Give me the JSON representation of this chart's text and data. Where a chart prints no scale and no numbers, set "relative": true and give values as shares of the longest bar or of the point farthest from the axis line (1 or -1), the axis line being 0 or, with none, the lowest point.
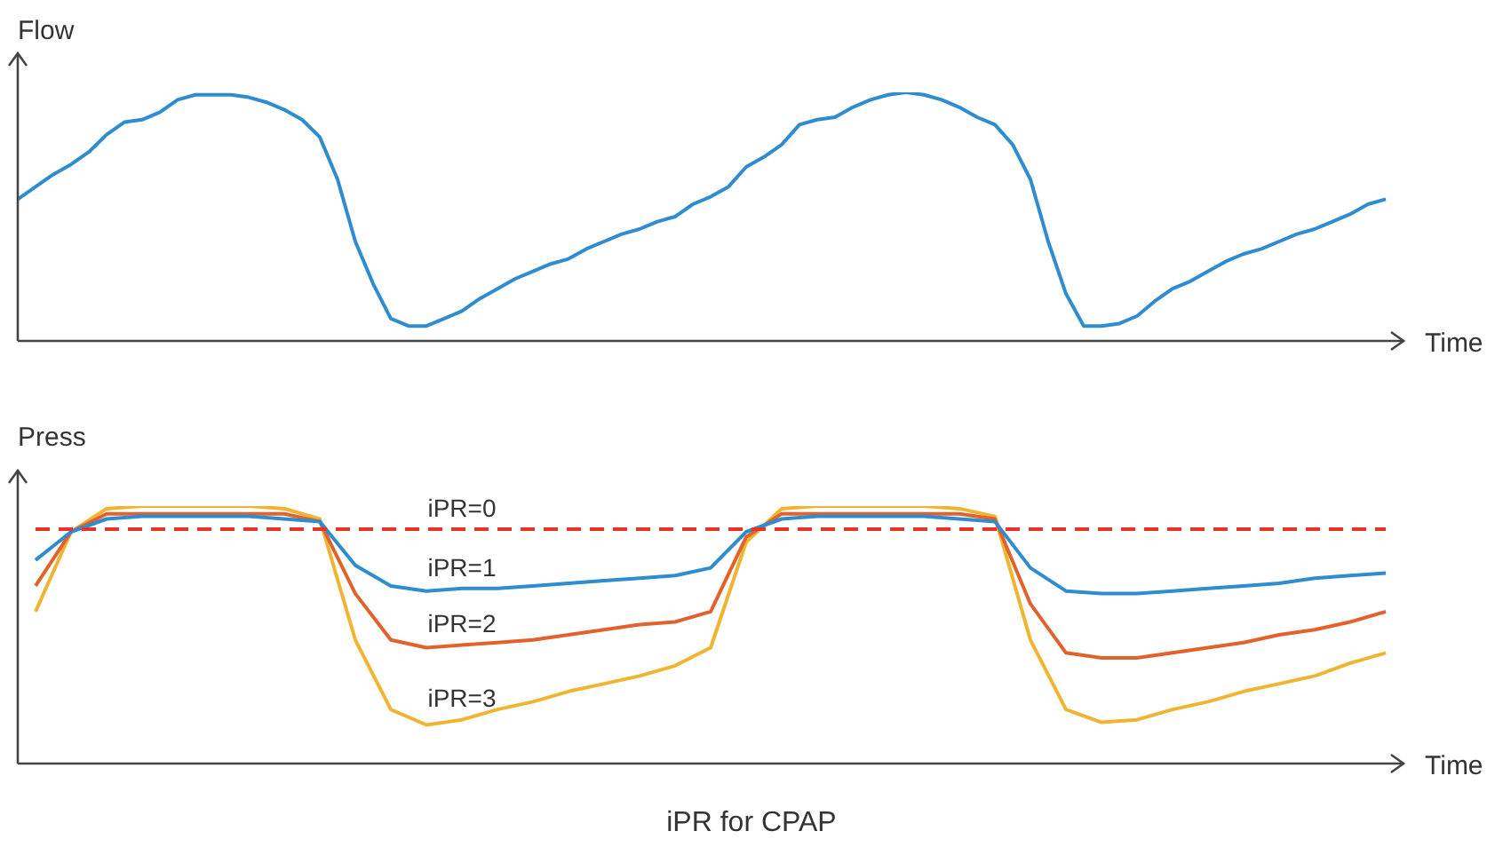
{
  "chart_data": [
    {
      "type": "line",
      "relative": true,
      "xlabel": "Time",
      "ylabel": "Flow",
      "legend": false,
      "marker": "none",
      "categories": [
        null,
        null,
        null,
        null,
        null,
        null,
        null,
        null,
        null,
        null,
        null,
        null,
        null,
        null,
        null,
        null,
        null,
        null,
        null,
        null,
        null,
        null,
        null,
        null,
        null,
        null,
        null,
        null,
        null,
        null,
        null,
        null,
        null,
        null,
        null,
        null,
        null,
        null,
        null,
        null,
        null,
        null,
        null,
        null,
        null,
        null,
        null,
        null,
        null,
        null,
        null,
        null,
        null,
        null,
        null,
        null,
        null,
        null,
        null,
        null,
        null,
        null,
        null,
        null,
        null,
        null,
        null,
        null,
        null,
        null,
        null,
        null,
        null,
        null,
        null,
        null,
        null,
        null
      ],
      "series": [
        {
          "color": "#2e8ccf",
          "values": [
            0.57,
            0.62,
            0.67,
            0.71,
            0.76,
            0.83,
            0.88,
            0.89,
            0.92,
            0.97,
            0.99,
            0.99,
            0.99,
            0.98,
            0.96,
            0.93,
            0.89,
            0.82,
            0.65,
            0.4,
            0.23,
            0.09,
            0.06,
            0.06,
            0.09,
            0.12,
            0.17,
            0.21,
            0.25,
            0.28,
            0.31,
            0.33,
            0.37,
            0.4,
            0.43,
            0.45,
            0.48,
            0.5,
            0.55,
            0.58,
            0.62,
            0.7,
            0.74,
            0.79,
            0.87,
            0.89,
            0.9,
            0.94,
            0.97,
            0.99,
            1,
            0.99,
            0.97,
            0.94,
            0.9,
            0.87,
            0.79,
            0.65,
            0.4,
            0.19,
            0.06,
            0.06,
            0.07,
            0.1,
            0.16,
            0.21,
            0.24,
            0.28,
            0.32,
            0.35,
            0.37,
            0.4,
            0.43,
            0.45,
            0.48,
            0.51,
            0.55,
            0.57
          ]
        }
      ]
    },
    {
      "type": "line",
      "relative": true,
      "xlabel": "Time",
      "ylabel": "Press",
      "legend": false,
      "marker": "none",
      "annotations": [
        "iPR for CPAP"
      ],
      "categories": [
        null,
        null,
        null,
        null,
        null,
        null,
        null,
        null,
        null,
        null,
        null,
        null,
        null,
        null,
        null,
        null,
        null,
        null,
        null,
        null,
        null,
        null,
        null,
        null,
        null,
        null,
        null,
        null,
        null,
        null,
        null,
        null,
        null,
        null,
        null,
        null,
        null,
        null,
        null
      ],
      "series": [
        {
          "name": "iPR=0",
          "color": "#e8332a",
          "line_style": "dashed",
          "values": [
            0.91,
            0.91,
            0.91,
            0.91,
            0.91,
            0.91,
            0.91,
            0.91,
            0.91,
            0.91,
            0.91,
            0.91,
            0.91,
            0.91,
            0.91,
            0.91,
            0.91,
            0.91,
            0.91,
            0.91,
            0.91,
            0.91,
            0.91,
            0.91,
            0.91,
            0.91,
            0.91,
            0.91,
            0.91,
            0.91,
            0.91,
            0.91,
            0.91,
            0.91,
            0.91,
            0.91,
            0.91,
            0.91,
            0.91
          ]
        },
        {
          "name": "iPR=1",
          "color": "#2e8ccf",
          "values": [
            0.79,
            0.9,
            0.95,
            0.96,
            0.96,
            0.96,
            0.96,
            0.95,
            0.94,
            0.77,
            0.69,
            0.67,
            0.68,
            0.68,
            0.69,
            0.7,
            0.71,
            0.72,
            0.73,
            0.76,
            0.9,
            0.95,
            0.96,
            0.96,
            0.96,
            0.96,
            0.95,
            0.94,
            0.76,
            0.67,
            0.66,
            0.66,
            0.67,
            0.68,
            0.69,
            0.7,
            0.72,
            0.73,
            0.74
          ]
        },
        {
          "name": "iPR=2",
          "color": "#e2622b",
          "values": [
            0.69,
            0.9,
            0.97,
            0.97,
            0.97,
            0.97,
            0.97,
            0.97,
            0.94,
            0.66,
            0.48,
            0.45,
            0.46,
            0.47,
            0.48,
            0.5,
            0.52,
            0.54,
            0.55,
            0.59,
            0.88,
            0.97,
            0.97,
            0.97,
            0.97,
            0.97,
            0.97,
            0.95,
            0.62,
            0.43,
            0.41,
            0.41,
            0.43,
            0.45,
            0.47,
            0.5,
            0.52,
            0.55,
            0.59
          ]
        },
        {
          "name": "iPR=3",
          "color": "#f0b430",
          "values": [
            0.59,
            0.9,
            0.99,
            1,
            1,
            1,
            1,
            0.99,
            0.95,
            0.48,
            0.21,
            0.15,
            0.17,
            0.21,
            0.24,
            0.28,
            0.31,
            0.34,
            0.38,
            0.45,
            0.86,
            0.99,
            1,
            1,
            1,
            1,
            0.99,
            0.96,
            0.48,
            0.21,
            0.16,
            0.17,
            0.21,
            0.24,
            0.28,
            0.31,
            0.34,
            0.39,
            0.43
          ]
        }
      ]
    }
  ]
}
